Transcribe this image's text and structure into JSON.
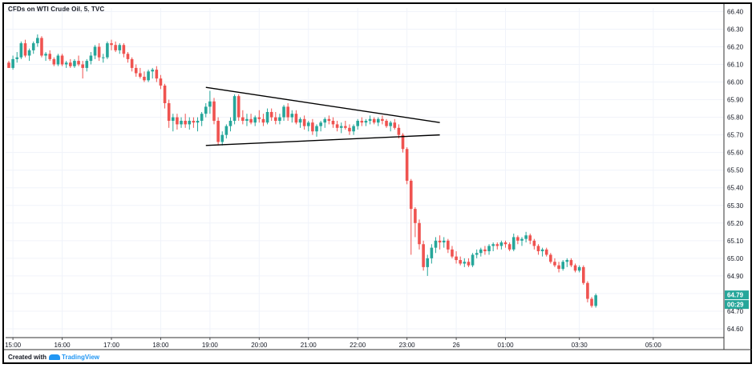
{
  "header": {
    "title": "CFDs on WTI Crude Oil, 5, TVC"
  },
  "footer": {
    "created_with": "Created with",
    "brand": "TradingView"
  },
  "colors": {
    "up": "#26a69a",
    "down": "#ef5350",
    "last_price_label": "#26a69a",
    "grid": "#f0f3fa",
    "axis_text": "#131722"
  },
  "chart_data": {
    "type": "candlestick",
    "ylim": [
      64.55,
      66.42
    ],
    "y_ticks": [
      "64.60",
      "64.70",
      "64.80",
      "64.90",
      "65.00",
      "65.10",
      "65.20",
      "65.30",
      "65.40",
      "65.50",
      "65.60",
      "65.70",
      "65.80",
      "65.90",
      "66.00",
      "66.10",
      "66.20",
      "66.30",
      "66.40"
    ],
    "x_ticks": [
      {
        "label": "15:00",
        "index": 1
      },
      {
        "label": "16:00",
        "index": 13
      },
      {
        "label": "17:00",
        "index": 25
      },
      {
        "label": "18:00",
        "index": 37
      },
      {
        "label": "19:00",
        "index": 49
      },
      {
        "label": "20:00",
        "index": 61
      },
      {
        "label": "21:00",
        "index": 73
      },
      {
        "label": "22:00",
        "index": 85
      },
      {
        "label": "23:00",
        "index": 97
      },
      {
        "label": "26",
        "index": 109
      },
      {
        "label": "01:00",
        "index": 121
      },
      {
        "label": "03:30",
        "index": 139
      },
      {
        "label": "05:00",
        "index": 157
      }
    ],
    "last_price": "64.79",
    "countdown": "00:29",
    "candles": [
      [
        66.11,
        66.12,
        66.08,
        66.08
      ],
      [
        66.08,
        66.15,
        66.07,
        66.13
      ],
      [
        66.13,
        66.17,
        66.11,
        66.14
      ],
      [
        66.14,
        66.23,
        66.13,
        66.22
      ],
      [
        66.22,
        66.24,
        66.14,
        66.15
      ],
      [
        66.15,
        66.19,
        66.12,
        66.18
      ],
      [
        66.18,
        66.23,
        66.16,
        66.22
      ],
      [
        66.22,
        66.27,
        66.2,
        66.25
      ],
      [
        66.25,
        66.26,
        66.14,
        66.15
      ],
      [
        66.15,
        66.17,
        66.12,
        66.16
      ],
      [
        66.16,
        66.18,
        66.12,
        66.13
      ],
      [
        66.13,
        66.14,
        66.09,
        66.1
      ],
      [
        66.1,
        66.16,
        66.09,
        66.15
      ],
      [
        66.15,
        66.16,
        66.09,
        66.1
      ],
      [
        66.1,
        66.12,
        66.08,
        66.11
      ],
      [
        66.11,
        66.13,
        66.08,
        66.09
      ],
      [
        66.09,
        66.13,
        66.08,
        66.12
      ],
      [
        66.12,
        66.15,
        66.09,
        66.1
      ],
      [
        66.1,
        66.12,
        66.02,
        66.08
      ],
      [
        66.08,
        66.13,
        66.06,
        66.12
      ],
      [
        66.12,
        66.17,
        66.1,
        66.15
      ],
      [
        66.15,
        66.21,
        66.13,
        66.2
      ],
      [
        66.2,
        66.22,
        66.12,
        66.14
      ],
      [
        66.14,
        66.16,
        66.11,
        66.14
      ],
      [
        66.14,
        66.23,
        66.13,
        66.22
      ],
      [
        66.22,
        66.24,
        66.18,
        66.21
      ],
      [
        66.21,
        66.23,
        66.17,
        66.18
      ],
      [
        66.18,
        66.22,
        66.16,
        66.21
      ],
      [
        66.21,
        66.22,
        66.14,
        66.16
      ],
      [
        66.16,
        66.17,
        66.11,
        66.13
      ],
      [
        66.13,
        66.14,
        66.06,
        66.08
      ],
      [
        66.08,
        66.1,
        66.03,
        66.05
      ],
      [
        66.05,
        66.08,
        66.02,
        66.03
      ],
      [
        66.03,
        66.06,
        66.0,
        66.01
      ],
      [
        66.01,
        66.07,
        66.0,
        66.06
      ],
      [
        66.06,
        66.08,
        66.02,
        66.07
      ],
      [
        66.07,
        66.09,
        66.0,
        66.02
      ],
      [
        66.02,
        66.04,
        65.96,
        65.98
      ],
      [
        65.98,
        65.99,
        65.85,
        65.88
      ],
      [
        65.88,
        65.9,
        65.74,
        65.78
      ],
      [
        65.78,
        65.82,
        65.72,
        65.8
      ],
      [
        65.8,
        65.82,
        65.73,
        65.76
      ],
      [
        65.76,
        65.8,
        65.74,
        65.78
      ],
      [
        65.78,
        65.82,
        65.74,
        65.76
      ],
      [
        65.76,
        65.8,
        65.73,
        65.78
      ],
      [
        65.78,
        65.8,
        65.74,
        65.77
      ],
      [
        65.77,
        65.8,
        65.72,
        65.78
      ],
      [
        65.78,
        65.83,
        65.75,
        65.82
      ],
      [
        65.82,
        65.88,
        65.8,
        65.86
      ],
      [
        65.86,
        65.95,
        65.82,
        65.89
      ],
      [
        65.89,
        65.91,
        65.76,
        65.78
      ],
      [
        65.78,
        65.8,
        65.64,
        65.66
      ],
      [
        65.66,
        65.72,
        65.64,
        65.7
      ],
      [
        65.7,
        65.76,
        65.68,
        65.75
      ],
      [
        65.75,
        65.8,
        65.72,
        65.78
      ],
      [
        65.78,
        65.93,
        65.76,
        65.92
      ],
      [
        65.92,
        65.93,
        65.78,
        65.8
      ],
      [
        65.8,
        65.84,
        65.76,
        65.78
      ],
      [
        65.78,
        65.82,
        65.75,
        65.79
      ],
      [
        65.79,
        65.82,
        65.76,
        65.77
      ],
      [
        65.77,
        65.81,
        65.75,
        65.8
      ],
      [
        65.8,
        65.84,
        65.77,
        65.79
      ],
      [
        65.79,
        65.82,
        65.75,
        65.77
      ],
      [
        65.77,
        65.85,
        65.76,
        65.83
      ],
      [
        65.83,
        65.85,
        65.78,
        65.8
      ],
      [
        65.8,
        65.83,
        65.76,
        65.78
      ],
      [
        65.78,
        65.82,
        65.76,
        65.8
      ],
      [
        65.8,
        65.87,
        65.78,
        65.86
      ],
      [
        65.86,
        65.88,
        65.78,
        65.8
      ],
      [
        65.8,
        65.84,
        65.77,
        65.82
      ],
      [
        65.82,
        65.84,
        65.76,
        65.77
      ],
      [
        65.77,
        65.8,
        65.74,
        65.79
      ],
      [
        65.79,
        65.81,
        65.73,
        65.75
      ],
      [
        65.75,
        65.78,
        65.72,
        65.77
      ],
      [
        65.77,
        65.79,
        65.7,
        65.72
      ],
      [
        65.72,
        65.76,
        65.69,
        65.75
      ],
      [
        65.75,
        65.78,
        65.72,
        65.77
      ],
      [
        65.77,
        65.8,
        65.74,
        65.79
      ],
      [
        65.79,
        65.81,
        65.76,
        65.78
      ],
      [
        65.78,
        65.8,
        65.74,
        65.76
      ],
      [
        65.76,
        65.78,
        65.72,
        65.74
      ],
      [
        65.74,
        65.77,
        65.71,
        65.75
      ],
      [
        65.75,
        65.78,
        65.73,
        65.74
      ],
      [
        65.74,
        65.76,
        65.7,
        65.72
      ],
      [
        65.72,
        65.76,
        65.7,
        65.75
      ],
      [
        65.75,
        65.79,
        65.73,
        65.78
      ],
      [
        65.78,
        65.8,
        65.75,
        65.77
      ],
      [
        65.77,
        65.79,
        65.75,
        65.78
      ],
      [
        65.78,
        65.81,
        65.76,
        65.79
      ],
      [
        65.79,
        65.8,
        65.76,
        65.77
      ],
      [
        65.77,
        65.8,
        65.75,
        65.79
      ],
      [
        65.79,
        65.81,
        65.76,
        65.78
      ],
      [
        65.78,
        65.79,
        65.74,
        65.75
      ],
      [
        65.75,
        65.78,
        65.72,
        65.77
      ],
      [
        65.77,
        65.79,
        65.73,
        65.74
      ],
      [
        65.74,
        65.76,
        65.68,
        65.7
      ],
      [
        65.7,
        65.71,
        65.6,
        65.62
      ],
      [
        65.62,
        65.63,
        65.42,
        65.44
      ],
      [
        65.44,
        65.45,
        65.02,
        65.28
      ],
      [
        65.28,
        65.29,
        65.12,
        65.2
      ],
      [
        65.2,
        65.22,
        65.05,
        65.08
      ],
      [
        65.08,
        65.1,
        64.93,
        64.95
      ],
      [
        64.95,
        65.02,
        64.9,
        65.0
      ],
      [
        65.0,
        65.08,
        64.97,
        65.06
      ],
      [
        65.06,
        65.12,
        65.03,
        65.1
      ],
      [
        65.1,
        65.13,
        65.05,
        65.09
      ],
      [
        65.09,
        65.12,
        65.06,
        65.1
      ],
      [
        65.1,
        65.11,
        65.03,
        65.05
      ],
      [
        65.05,
        65.07,
        65.0,
        65.01
      ],
      [
        65.01,
        65.04,
        64.97,
        64.99
      ],
      [
        64.99,
        65.01,
        64.96,
        64.97
      ],
      [
        64.97,
        65.0,
        64.95,
        64.98
      ],
      [
        64.98,
        65.0,
        64.95,
        64.96
      ],
      [
        64.96,
        65.03,
        64.95,
        65.02
      ],
      [
        65.02,
        65.05,
        65.0,
        65.03
      ],
      [
        65.03,
        65.06,
        65.01,
        65.05
      ],
      [
        65.05,
        65.07,
        65.02,
        65.04
      ],
      [
        65.04,
        65.08,
        65.02,
        65.07
      ],
      [
        65.07,
        65.09,
        65.04,
        65.08
      ],
      [
        65.08,
        65.09,
        65.05,
        65.07
      ],
      [
        65.07,
        65.1,
        65.05,
        65.09
      ],
      [
        65.09,
        65.1,
        65.06,
        65.08
      ],
      [
        65.08,
        65.09,
        65.04,
        65.05
      ],
      [
        65.05,
        65.14,
        65.04,
        65.12
      ],
      [
        65.12,
        65.13,
        65.08,
        65.1
      ],
      [
        65.1,
        65.12,
        65.07,
        65.11
      ],
      [
        65.11,
        65.15,
        65.09,
        65.13
      ],
      [
        65.13,
        65.14,
        65.08,
        65.1
      ],
      [
        65.1,
        65.11,
        65.05,
        65.07
      ],
      [
        65.07,
        65.08,
        65.02,
        65.04
      ],
      [
        65.04,
        65.06,
        65.01,
        65.05
      ],
      [
        65.05,
        65.06,
        65.01,
        65.02
      ],
      [
        65.02,
        65.03,
        64.97,
        64.98
      ],
      [
        64.98,
        65.0,
        64.95,
        64.96
      ],
      [
        64.96,
        64.98,
        64.92,
        64.94
      ],
      [
        64.94,
        64.99,
        64.93,
        64.98
      ],
      [
        64.98,
        65.0,
        64.95,
        64.99
      ],
      [
        64.99,
        65.0,
        64.95,
        64.96
      ],
      [
        64.96,
        64.97,
        64.92,
        64.93
      ],
      [
        64.93,
        64.96,
        64.92,
        64.95
      ],
      [
        64.95,
        64.96,
        64.85,
        64.86
      ],
      [
        64.86,
        64.87,
        64.75,
        64.77
      ],
      [
        64.77,
        64.78,
        64.72,
        64.73
      ],
      [
        64.73,
        64.8,
        64.72,
        64.79
      ]
    ],
    "triangle": {
      "upper": {
        "start": {
          "index": 48,
          "value": 65.97
        },
        "end": {
          "index": 105,
          "value": 65.77
        }
      },
      "lower": {
        "start": {
          "index": 48,
          "value": 65.64
        },
        "end": {
          "index": 105,
          "value": 65.7
        }
      }
    }
  }
}
